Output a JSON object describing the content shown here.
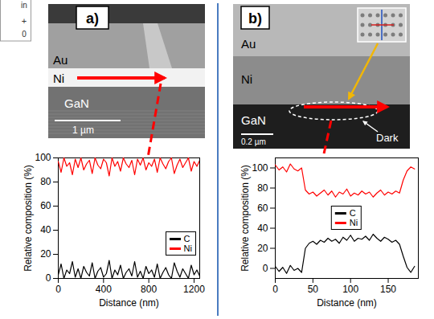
{
  "fragments": [
    "in",
    "+",
    "0"
  ],
  "micrographs": [
    {
      "panel": "a)",
      "layers": [
        "Au",
        "Ni",
        "GaN"
      ],
      "scale_bar": "1 µm"
    },
    {
      "panel": "b)",
      "layers": [
        "Au",
        "Ni",
        "GaN"
      ],
      "scale_bar": "0.2 µm",
      "annotation": "Dark"
    }
  ],
  "chart_data": [
    {
      "type": "line",
      "xlabel": "Distance (nm)",
      "ylabel": "Relative composition (%)",
      "xlim": [
        0,
        1250
      ],
      "xticks": [
        0,
        400,
        800,
        1200
      ],
      "ylim": [
        0,
        100
      ],
      "yticks": [
        0,
        20,
        40,
        60,
        80,
        100
      ],
      "grid": false,
      "legend": "lower right",
      "x": [
        0,
        25,
        50,
        75,
        100,
        125,
        150,
        175,
        200,
        225,
        250,
        275,
        300,
        325,
        350,
        375,
        400,
        425,
        450,
        475,
        500,
        525,
        550,
        575,
        600,
        625,
        650,
        675,
        700,
        725,
        750,
        775,
        800,
        825,
        850,
        875,
        900,
        925,
        950,
        975,
        1000,
        1025,
        1050,
        1075,
        1100,
        1125,
        1150,
        1175,
        1200,
        1225,
        1250
      ],
      "series": [
        {
          "name": "C",
          "color": "#000000",
          "values": [
            3,
            12,
            0,
            7,
            4,
            14,
            1,
            8,
            0,
            10,
            5,
            2,
            13,
            0,
            6,
            9,
            1,
            4,
            15,
            0,
            7,
            3,
            11,
            0,
            5,
            8,
            2,
            14,
            1,
            6,
            0,
            10,
            4,
            7,
            1,
            12,
            0,
            5,
            9,
            3,
            0,
            13,
            6,
            1,
            8,
            4,
            0,
            11,
            3,
            7,
            2
          ]
        },
        {
          "name": "Ni",
          "color": "#ff0000",
          "values": [
            97,
            88,
            100,
            93,
            96,
            86,
            99,
            92,
            100,
            90,
            95,
            98,
            87,
            100,
            94,
            91,
            99,
            96,
            85,
            100,
            93,
            97,
            89,
            100,
            95,
            92,
            98,
            86,
            99,
            94,
            100,
            90,
            96,
            93,
            99,
            88,
            100,
            95,
            91,
            97,
            100,
            87,
            94,
            99,
            92,
            96,
            100,
            89,
            97,
            93,
            98
          ]
        }
      ]
    },
    {
      "type": "line",
      "xlabel": "Distance (nm)",
      "ylabel": "Relative composition (%)",
      "xlim": [
        0,
        190
      ],
      "xticks": [
        0,
        50,
        100,
        150
      ],
      "ylim": [
        -10,
        110
      ],
      "yticks": [
        0,
        20,
        40,
        60,
        80,
        100
      ],
      "grid": false,
      "legend": "center",
      "x": [
        0,
        5,
        10,
        15,
        20,
        25,
        30,
        35,
        40,
        45,
        50,
        55,
        60,
        65,
        70,
        75,
        80,
        85,
        90,
        95,
        100,
        105,
        110,
        115,
        120,
        125,
        130,
        135,
        140,
        145,
        150,
        155,
        160,
        165,
        170,
        175,
        180,
        185
      ],
      "series": [
        {
          "name": "C",
          "color": "#000000",
          "values": [
            2,
            -3,
            1,
            -5,
            3,
            -2,
            0,
            -4,
            20,
            25,
            27,
            24,
            28,
            26,
            30,
            27,
            29,
            25,
            31,
            28,
            33,
            27,
            30,
            29,
            32,
            28,
            34,
            30,
            27,
            31,
            29,
            26,
            28,
            24,
            12,
            1,
            -4,
            2
          ]
        },
        {
          "name": "Ni",
          "color": "#ff0000",
          "values": [
            103,
            98,
            101,
            96,
            104,
            99,
            97,
            100,
            78,
            74,
            76,
            72,
            75,
            78,
            73,
            77,
            71,
            76,
            74,
            79,
            72,
            75,
            73,
            77,
            74,
            76,
            71,
            75,
            78,
            73,
            76,
            74,
            77,
            75,
            88,
            97,
            101,
            99
          ]
        }
      ]
    }
  ]
}
